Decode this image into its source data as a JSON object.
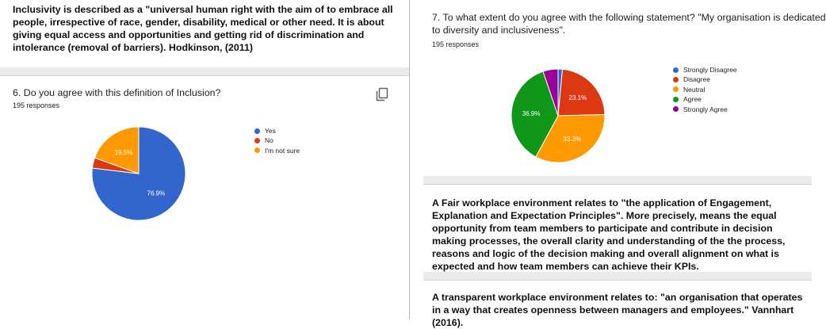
{
  "left": {
    "intro_text": "Inclusivity is described as a \"universal human right with the aim of to embrace all people, irrespective of race, gender, disability, medical or other need. It is about giving equal access and opportunities and getting rid of discrimination and intolerance (removal of barriers). Hodkinson, (2011)",
    "question": "6. Do you agree with this definition of Inclusion?",
    "responses": "195 responses",
    "copy_icon": "copy-icon"
  },
  "right": {
    "question_line1": "7. To what extent do you agree with the following statement? \"My organisation is dedicated",
    "question_line2": "to diversity and inclusiveness\".",
    "responses": "195 responses",
    "fair_text": "A Fair workplace environment relates to \"the application of Engagement, Explanation and Expectation Principles\". More precisely, means the equal opportunity from team members to participate and contribute in decision making processes, the overall clarity and understanding of the the process, reasons and logic of the decision making and overall alignment on what is expected and how team members can achieve their KPIs.",
    "transparent_text": "A transparent workplace environment relates to: \"an organisation that operates in a way that creates openness between managers and employees.\" Vannhart (2016)."
  },
  "chart_data": [
    {
      "type": "pie",
      "categories": [
        "Yes",
        "No",
        "I'm not sure"
      ],
      "values": [
        76.9,
        3.6,
        19.5
      ],
      "colors": [
        "#3366cc",
        "#dc3912",
        "#ff9900"
      ],
      "data_labels": [
        "76.9%",
        "",
        "19.5%"
      ],
      "legend_position": "right"
    },
    {
      "type": "pie",
      "categories": [
        "Strongly Disagree",
        "Disagree",
        "Neutral",
        "Agree",
        "Strongly Agree"
      ],
      "values": [
        1.5,
        23.1,
        33.3,
        36.9,
        5.2
      ],
      "colors": [
        "#3366cc",
        "#dc3912",
        "#ff9900",
        "#109618",
        "#990099"
      ],
      "data_labels": [
        "",
        "23.1%",
        "33.3%",
        "36.9%",
        ""
      ],
      "legend_position": "right"
    }
  ]
}
